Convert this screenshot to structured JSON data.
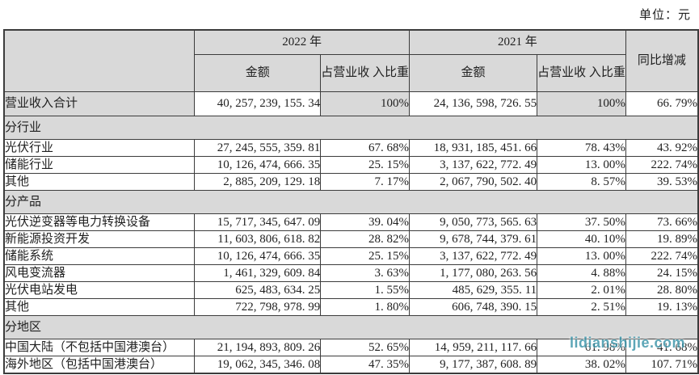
{
  "unit_label": "单位：元",
  "watermark": "lidianshijie.com",
  "colors": {
    "header_bg": "#d9d9d9",
    "border": "#3c3c3c",
    "text": "#1f1f1f",
    "watermark": "#3a93a8"
  },
  "table": {
    "headers": {
      "year_2022": "2022 年",
      "year_2021": "2021 年",
      "amount": "金额",
      "pct_of_revenue": "占营业收\n入比重",
      "yoy_change": "同比增减"
    },
    "rows": [
      {
        "type": "total",
        "label": "营业收入合计",
        "cells": [
          "40, 257, 239, 155. 34",
          "100%",
          "24, 136, 598, 726. 55",
          "100%",
          "66. 79%"
        ]
      },
      {
        "type": "section",
        "label": "分行业"
      },
      {
        "type": "data",
        "label": "光伏行业",
        "cells": [
          "27, 245, 555, 359. 81",
          "67. 68%",
          "18, 931, 185, 451. 66",
          "78. 43%",
          "43. 92%"
        ]
      },
      {
        "type": "data",
        "label": "储能行业",
        "cells": [
          "10, 126, 474, 666. 35",
          "25. 15%",
          "3, 137, 622, 772. 49",
          "13. 00%",
          "222. 74%"
        ]
      },
      {
        "type": "data",
        "label": "其他",
        "cells": [
          "2, 885, 209, 129. 18",
          "7. 17%",
          "2, 067, 790, 502. 40",
          "8. 57%",
          "39. 53%"
        ]
      },
      {
        "type": "section",
        "label": "分产品"
      },
      {
        "type": "data",
        "label": "光伏逆变器等电力转换设备",
        "cells": [
          "15, 717, 345, 647. 09",
          "39. 04%",
          "9, 050, 773, 565. 63",
          "37. 50%",
          "73. 66%"
        ]
      },
      {
        "type": "data",
        "label": "新能源投资开发",
        "cells": [
          "11, 603, 806, 618. 82",
          "28. 82%",
          "9, 678, 744, 379. 61",
          "40. 10%",
          "19. 89%"
        ]
      },
      {
        "type": "data",
        "label": "储能系统",
        "cells": [
          "10, 126, 474, 666. 35",
          "25. 15%",
          "3, 137, 622, 772. 49",
          "13. 00%",
          "222. 74%"
        ]
      },
      {
        "type": "data",
        "label": "风电变流器",
        "cells": [
          "1, 461, 329, 609. 84",
          "3. 63%",
          "1, 177, 080, 263. 56",
          "4. 88%",
          "24. 15%"
        ]
      },
      {
        "type": "data",
        "label": "光伏电站发电",
        "cells": [
          "625, 483, 634. 25",
          "1. 55%",
          "485, 629, 355. 11",
          "2. 01%",
          "28. 80%"
        ]
      },
      {
        "type": "data",
        "label": "其他",
        "cells": [
          "722, 798, 978. 99",
          "1. 80%",
          "606, 748, 390. 15",
          "2. 51%",
          "19. 13%"
        ]
      },
      {
        "type": "section",
        "label": "分地区"
      },
      {
        "type": "data",
        "label": "中国大陆（不包括中国港澳台）",
        "cells": [
          "21, 194, 893, 809. 26",
          "52. 65%",
          "14, 959, 211, 117. 66",
          "61. 98%",
          "41. 68%"
        ]
      },
      {
        "type": "data",
        "label": "海外地区（包括中国港澳台）",
        "cells": [
          "19, 062, 345, 346. 08",
          "47. 35%",
          "9, 177, 387, 608. 89",
          "38. 02%",
          "107. 71%"
        ]
      }
    ]
  }
}
